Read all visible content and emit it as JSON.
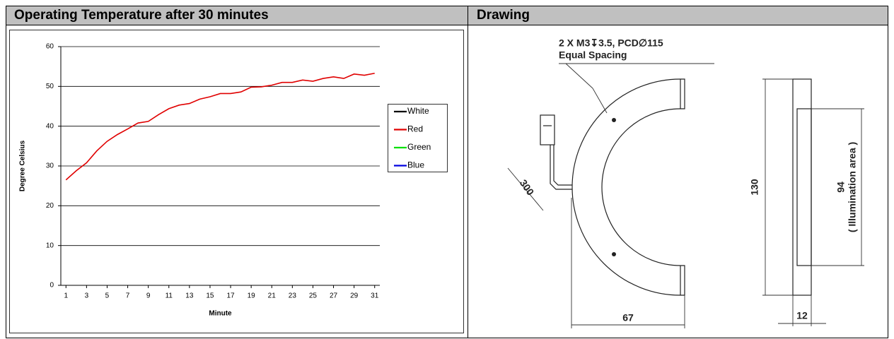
{
  "table": {
    "headers": [
      "Operating Temperature after 30 minutes",
      "Drawing"
    ]
  },
  "chart_data": {
    "type": "line",
    "x": [
      1,
      2,
      3,
      4,
      5,
      6,
      7,
      8,
      9,
      10,
      11,
      12,
      13,
      14,
      15,
      16,
      17,
      18,
      19,
      20,
      21,
      22,
      23,
      24,
      25,
      26,
      27,
      28,
      29,
      30,
      31
    ],
    "xlim": [
      0.5,
      31.5
    ],
    "xticks": [
      1,
      3,
      5,
      7,
      9,
      11,
      13,
      15,
      17,
      19,
      21,
      23,
      25,
      27,
      29,
      31
    ],
    "ylim": [
      0,
      60
    ],
    "yticks": [
      0,
      10,
      20,
      30,
      40,
      50,
      60
    ],
    "grid": true,
    "xlabel": "Minute",
    "ylabel": "Degree Celsius",
    "legend": "right",
    "series": [
      {
        "name": "White",
        "color": "#000000",
        "values": [
          null,
          null,
          null,
          null,
          null,
          null,
          null,
          null,
          null,
          null,
          null,
          null,
          null,
          null,
          null,
          null,
          null,
          null,
          null,
          null,
          null,
          null,
          null,
          null,
          null,
          null,
          null,
          null,
          null,
          null,
          null
        ]
      },
      {
        "name": "Red",
        "color": "#e00000",
        "values": [
          26.5,
          28.8,
          30.8,
          33.8,
          36.2,
          37.9,
          39.3,
          40.8,
          41.2,
          42.9,
          44.4,
          45.3,
          45.7,
          46.8,
          47.4,
          48.2,
          48.2,
          48.6,
          49.8,
          49.9,
          50.3,
          51.0,
          51.0,
          51.6,
          51.3,
          52.0,
          52.4,
          52.0,
          53.1,
          52.8,
          53.3
        ]
      },
      {
        "name": "Green",
        "color": "#00e000",
        "values": [
          null,
          null,
          null,
          null,
          null,
          null,
          null,
          null,
          null,
          null,
          null,
          null,
          null,
          null,
          null,
          null,
          null,
          null,
          null,
          null,
          null,
          null,
          null,
          null,
          null,
          null,
          null,
          null,
          null,
          null,
          null
        ]
      },
      {
        "name": "Blue",
        "color": "#0000e0",
        "values": [
          null,
          null,
          null,
          null,
          null,
          null,
          null,
          null,
          null,
          null,
          null,
          null,
          null,
          null,
          null,
          null,
          null,
          null,
          null,
          null,
          null,
          null,
          null,
          null,
          null,
          null,
          null,
          null,
          null,
          null,
          null
        ]
      }
    ]
  },
  "drawing": {
    "labels": [
      "2 X M3↧3.5, PCD∅115",
      "Equal Spacing",
      "300",
      "130",
      "94",
      "( Illumination area )",
      "67",
      "12"
    ]
  }
}
